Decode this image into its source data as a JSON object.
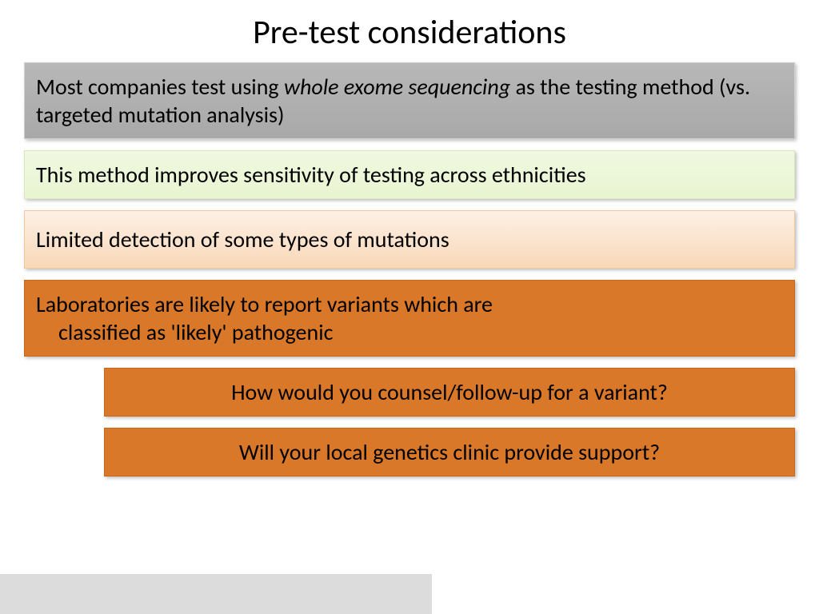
{
  "title": "Pre-test considerations",
  "boxes": {
    "gray": {
      "text_before_italic": "Most companies test using ",
      "italic_text": "whole exome sequencing",
      "text_after_italic": " as the testing method (vs. targeted mutation analysis)"
    },
    "green": "This method improves sensitivity of testing across ethnicities",
    "peach": "Limited detection of some types of mutations",
    "orange_main": {
      "line1": "Laboratories are likely to report  variants which are",
      "line2": "classified as 'likely' pathogenic"
    },
    "orange_sub1": "How would you counsel/follow-up for a variant?",
    "orange_sub2": "Will your local genetics clinic provide support?"
  },
  "colors": {
    "gray_bg": "#b0b0b0",
    "green_bg": "#ecf5dc",
    "peach_bg": "#fae4cf",
    "orange_bg": "#d97828",
    "footer_bg": "#dcdcdc"
  }
}
